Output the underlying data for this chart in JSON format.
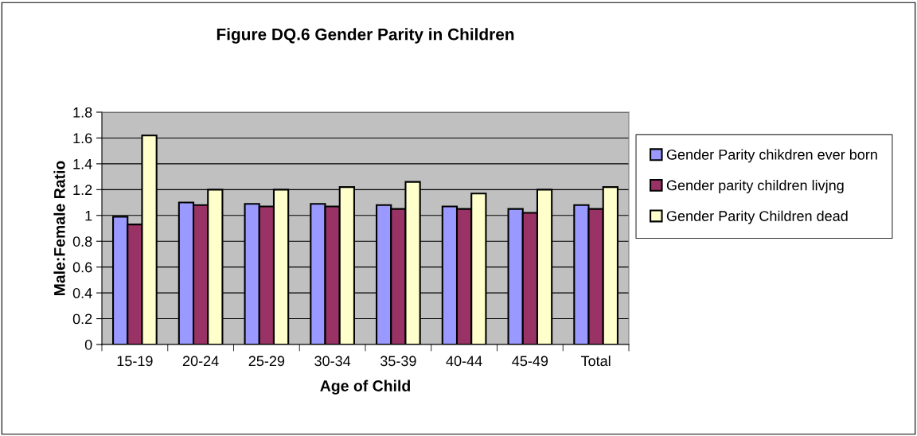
{
  "chart_data": {
    "type": "bar",
    "title": "Figure DQ.6 Gender Parity in Children",
    "xlabel": "Age of Child",
    "ylabel": "Male:Female Ratio",
    "categories": [
      "15-19",
      "20-24",
      "25-29",
      "30-34",
      "35-39",
      "40-44",
      "45-49",
      "Total"
    ],
    "series": [
      {
        "name": "Gender Parity chikdren ever born",
        "color": "#9999ff",
        "values": [
          0.99,
          1.1,
          1.09,
          1.09,
          1.08,
          1.07,
          1.05,
          1.08
        ]
      },
      {
        "name": "Gender parity children livjng",
        "color": "#993366",
        "values": [
          0.93,
          1.08,
          1.07,
          1.07,
          1.05,
          1.05,
          1.02,
          1.05
        ]
      },
      {
        "name": "Gender Parity Children dead",
        "color": "#ffffcc",
        "values": [
          1.62,
          1.2,
          1.2,
          1.22,
          1.26,
          1.17,
          1.2,
          1.22
        ]
      }
    ],
    "ylim": [
      0,
      1.8
    ],
    "yticks": [
      0,
      0.2,
      0.4,
      0.6,
      0.8,
      1,
      1.2,
      1.4,
      1.6,
      1.8
    ],
    "grid": "y",
    "legend": "right"
  }
}
